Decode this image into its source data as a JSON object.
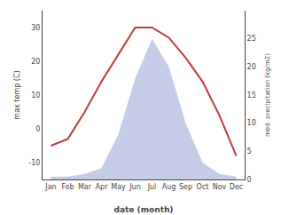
{
  "chart_data": {
    "type": "line",
    "categories": [
      "Jan",
      "Feb",
      "Mar",
      "Apr",
      "May",
      "Jun",
      "Jul",
      "Aug",
      "Sep",
      "Oct",
      "Nov",
      "Dec"
    ],
    "xlabel": "date (month)",
    "ylabel": "max temp (C)",
    "y2label": "med. precipitation (kg/m2)",
    "series": [
      {
        "type": "area",
        "axis": "y2",
        "color": "#c5cce8",
        "values": [
          0.5,
          0.5,
          1,
          2,
          8,
          18,
          25,
          20,
          10,
          3,
          1,
          0.5
        ]
      },
      {
        "type": "line",
        "color": "#c0393b",
        "values": [
          -5,
          -3,
          5,
          14,
          22,
          30,
          30,
          27,
          21,
          14,
          4,
          -8
        ]
      }
    ],
    "ylim": [
      -15,
      35
    ],
    "yticks": [
      -10,
      0,
      10,
      20,
      30
    ],
    "y2lim": [
      0,
      30
    ],
    "y2ticks": [
      0,
      5,
      10,
      15,
      20,
      25
    ],
    "grid": false
  }
}
